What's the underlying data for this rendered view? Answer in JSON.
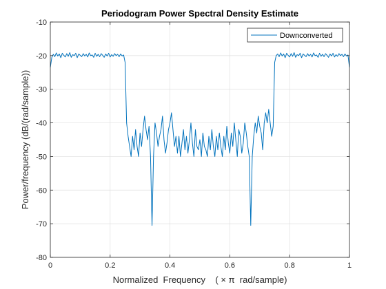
{
  "chart_data": {
    "type": "line",
    "title": "Periodogram Power Spectral Density Estimate",
    "xlabel": "Normalized  Frequency    ( × π  rad/sample)",
    "ylabel": "Power/frequency (dB/(rad/sample))",
    "xlim": [
      0,
      1
    ],
    "ylim": [
      -80,
      -10
    ],
    "xticks": [
      0,
      0.2,
      0.4,
      0.6,
      0.8,
      1
    ],
    "xtick_labels": [
      "0",
      "0.2",
      "0.4",
      "0.6",
      "0.8",
      "1"
    ],
    "yticks": [
      -80,
      -70,
      -60,
      -50,
      -40,
      -30,
      -20,
      -10
    ],
    "ytick_labels": [
      "-80",
      "-70",
      "-60",
      "-50",
      "-40",
      "-30",
      "-20",
      "-10"
    ],
    "grid": true,
    "legend": {
      "position": "top-right",
      "entries": [
        "Downconverted"
      ]
    },
    "series": [
      {
        "name": "Downconverted",
        "color": "#0072bd",
        "x": [
          0,
          0.005,
          0.01,
          0.015,
          0.02,
          0.025,
          0.03,
          0.035,
          0.04,
          0.045,
          0.05,
          0.055,
          0.06,
          0.065,
          0.07,
          0.075,
          0.08,
          0.085,
          0.09,
          0.095,
          0.1,
          0.105,
          0.11,
          0.115,
          0.12,
          0.125,
          0.13,
          0.135,
          0.14,
          0.145,
          0.15,
          0.155,
          0.16,
          0.165,
          0.17,
          0.175,
          0.18,
          0.185,
          0.19,
          0.195,
          0.2,
          0.205,
          0.21,
          0.215,
          0.22,
          0.225,
          0.23,
          0.235,
          0.24,
          0.245,
          0.25,
          0.255,
          0.26,
          0.265,
          0.27,
          0.275,
          0.28,
          0.285,
          0.29,
          0.295,
          0.3,
          0.305,
          0.31,
          0.315,
          0.32,
          0.325,
          0.33,
          0.335,
          0.34,
          0.345,
          0.35,
          0.355,
          0.36,
          0.365,
          0.37,
          0.375,
          0.38,
          0.385,
          0.39,
          0.395,
          0.4,
          0.405,
          0.41,
          0.415,
          0.42,
          0.425,
          0.43,
          0.435,
          0.44,
          0.445,
          0.45,
          0.455,
          0.46,
          0.465,
          0.47,
          0.475,
          0.48,
          0.485,
          0.49,
          0.495,
          0.5,
          0.505,
          0.51,
          0.515,
          0.52,
          0.525,
          0.53,
          0.535,
          0.54,
          0.545,
          0.55,
          0.555,
          0.56,
          0.565,
          0.57,
          0.575,
          0.58,
          0.585,
          0.59,
          0.595,
          0.6,
          0.605,
          0.61,
          0.615,
          0.62,
          0.625,
          0.63,
          0.635,
          0.64,
          0.645,
          0.65,
          0.655,
          0.66,
          0.665,
          0.67,
          0.675,
          0.68,
          0.685,
          0.69,
          0.695,
          0.7,
          0.705,
          0.71,
          0.715,
          0.72,
          0.725,
          0.73,
          0.735,
          0.74,
          0.745,
          0.75,
          0.755,
          0.76,
          0.765,
          0.77,
          0.775,
          0.78,
          0.785,
          0.79,
          0.795,
          0.8,
          0.805,
          0.81,
          0.815,
          0.82,
          0.825,
          0.83,
          0.835,
          0.84,
          0.845,
          0.85,
          0.855,
          0.86,
          0.865,
          0.87,
          0.875,
          0.88,
          0.885,
          0.89,
          0.895,
          0.9,
          0.905,
          0.91,
          0.915,
          0.92,
          0.925,
          0.93,
          0.935,
          0.94,
          0.945,
          0.95,
          0.955,
          0.96,
          0.965,
          0.97,
          0.975,
          0.98,
          0.985,
          0.99,
          0.995,
          1
        ],
        "y": [
          -23.5,
          -20.5,
          -19.6,
          -20.3,
          -19.2,
          -20.1,
          -19.5,
          -20.6,
          -19.3,
          -19.9,
          -20.4,
          -19.4,
          -20.2,
          -19.1,
          -20.5,
          -19.7,
          -20.0,
          -19.3,
          -20.6,
          -19.5,
          -19.9,
          -20.3,
          -19.4,
          -20.1,
          -19.6,
          -20.4,
          -19.2,
          -20.0,
          -19.8,
          -20.5,
          -19.3,
          -20.2,
          -19.6,
          -20.3,
          -19.4,
          -19.9,
          -20.5,
          -19.5,
          -20.1,
          -19.3,
          -20.4,
          -19.7,
          -20.2,
          -19.4,
          -20.0,
          -19.6,
          -20.3,
          -19.5,
          -20.1,
          -19.8,
          -22.0,
          -40.0,
          -44.0,
          -47.0,
          -50.0,
          -44.0,
          -48.0,
          -42.0,
          -47.0,
          -50.0,
          -43.0,
          -47.0,
          -42.0,
          -38.0,
          -42.0,
          -45.0,
          -41.0,
          -50.0,
          -70.5,
          -50.0,
          -40.0,
          -43.0,
          -47.0,
          -44.0,
          -42.0,
          -38.0,
          -45.0,
          -49.0,
          -46.0,
          -42.0,
          -40.0,
          -37.0,
          -42.0,
          -47.0,
          -44.0,
          -49.0,
          -44.0,
          -50.0,
          -46.0,
          -42.0,
          -48.0,
          -44.0,
          -49.0,
          -45.0,
          -40.0,
          -46.0,
          -50.0,
          -42.0,
          -47.0,
          -48.0,
          -45.0,
          -50.0,
          -43.0,
          -47.0,
          -48.0,
          -50.0,
          -44.0,
          -48.0,
          -42.0,
          -47.0,
          -50.0,
          -44.0,
          -48.0,
          -43.0,
          -47.0,
          -50.0,
          -44.0,
          -48.0,
          -41.0,
          -46.0,
          -49.0,
          -43.0,
          -47.0,
          -40.0,
          -45.0,
          -50.0,
          -42.0,
          -44.0,
          -49.0,
          -46.0,
          -40.0,
          -43.0,
          -47.0,
          -50.0,
          -70.5,
          -50.0,
          -44.0,
          -40.0,
          -43.0,
          -38.0,
          -41.0,
          -43.0,
          -48.0,
          -40.0,
          -37.0,
          -40.0,
          -36.0,
          -40.0,
          -44.0,
          -41.0,
          -22.0,
          -20.0,
          -19.5,
          -20.3,
          -19.2,
          -20.1,
          -19.5,
          -20.6,
          -19.3,
          -19.9,
          -20.4,
          -19.4,
          -20.2,
          -19.1,
          -20.5,
          -19.7,
          -20.0,
          -19.3,
          -20.6,
          -19.5,
          -19.9,
          -20.3,
          -19.4,
          -20.1,
          -19.6,
          -20.4,
          -19.2,
          -20.0,
          -19.8,
          -20.5,
          -19.3,
          -20.2,
          -19.6,
          -20.3,
          -19.4,
          -19.9,
          -20.5,
          -19.5,
          -20.1,
          -19.3,
          -20.4,
          -19.7,
          -20.2,
          -19.4,
          -20.0,
          -19.6,
          -20.3,
          -19.5,
          -20.1,
          -19.8,
          -23.5
        ]
      }
    ]
  }
}
